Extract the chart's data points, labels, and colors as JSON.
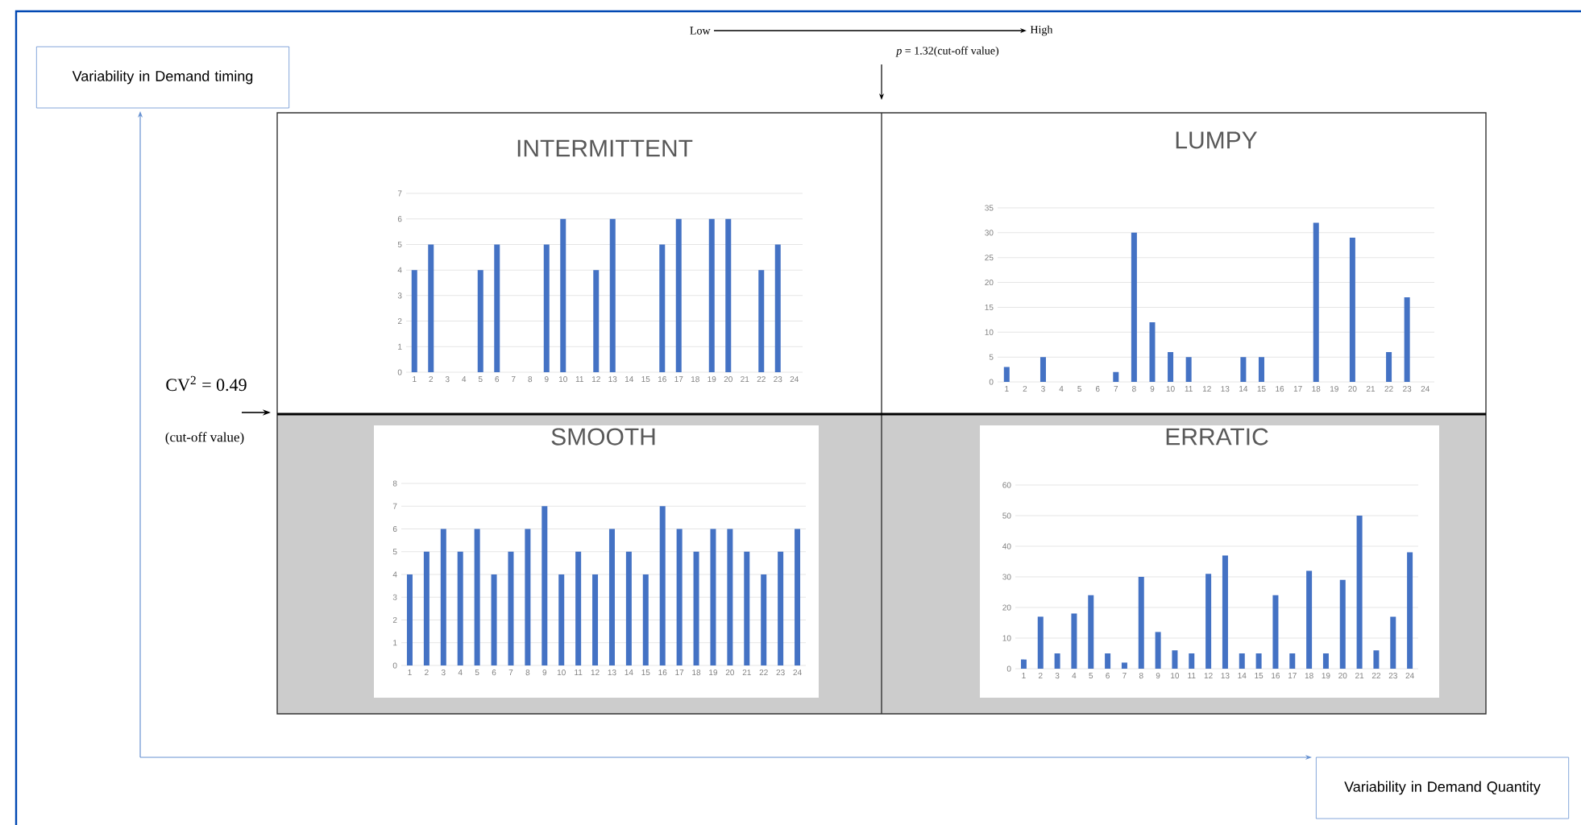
{
  "chart_data": [
    {
      "type": "bar",
      "title": "INTERMITTENT",
      "categories": [
        "1",
        "2",
        "3",
        "4",
        "5",
        "6",
        "7",
        "8",
        "9",
        "10",
        "11",
        "12",
        "13",
        "14",
        "15",
        "16",
        "17",
        "18",
        "19",
        "20",
        "21",
        "22",
        "23",
        "24"
      ],
      "values": [
        4,
        5,
        0,
        0,
        4,
        5,
        0,
        0,
        5,
        6,
        0,
        4,
        6,
        0,
        0,
        5,
        6,
        0,
        6,
        6,
        0,
        4,
        5,
        0
      ],
      "color": "#4472c4",
      "ylim": [
        0,
        7
      ],
      "yticks": [
        0,
        1,
        2,
        3,
        4,
        5,
        6,
        7
      ],
      "grid": "y"
    },
    {
      "type": "bar",
      "title": "LUMPY",
      "categories": [
        "1",
        "2",
        "3",
        "4",
        "5",
        "6",
        "7",
        "8",
        "9",
        "10",
        "11",
        "12",
        "13",
        "14",
        "15",
        "16",
        "17",
        "18",
        "19",
        "20",
        "21",
        "22",
        "23",
        "24"
      ],
      "values": [
        3,
        0,
        5,
        0,
        0,
        0,
        2,
        30,
        12,
        6,
        5,
        0,
        0,
        5,
        5,
        0,
        0,
        32,
        0,
        29,
        0,
        6,
        17,
        0
      ],
      "color": "#4472c4",
      "ylim": [
        0,
        35
      ],
      "yticks": [
        0,
        5,
        10,
        15,
        20,
        25,
        30,
        35
      ],
      "grid": "y"
    },
    {
      "type": "bar",
      "title": "SMOOTH",
      "categories": [
        "1",
        "2",
        "3",
        "4",
        "5",
        "6",
        "7",
        "8",
        "9",
        "10",
        "11",
        "12",
        "13",
        "14",
        "15",
        "16",
        "17",
        "18",
        "19",
        "20",
        "21",
        "22",
        "23",
        "24"
      ],
      "values": [
        4,
        5,
        6,
        5,
        6,
        4,
        5,
        6,
        7,
        4,
        5,
        4,
        6,
        5,
        4,
        7,
        6,
        5,
        6,
        6,
        5,
        4,
        5,
        6
      ],
      "color": "#4472c4",
      "ylim": [
        0,
        8
      ],
      "yticks": [
        0,
        1,
        2,
        3,
        4,
        5,
        6,
        7,
        8
      ],
      "grid": "y"
    },
    {
      "type": "bar",
      "title": "ERRATIC",
      "categories": [
        "1",
        "2",
        "3",
        "4",
        "5",
        "6",
        "7",
        "8",
        "9",
        "10",
        "11",
        "12",
        "13",
        "14",
        "15",
        "16",
        "17",
        "18",
        "19",
        "20",
        "21",
        "22",
        "23",
        "24"
      ],
      "values": [
        3,
        17,
        5,
        18,
        24,
        5,
        2,
        30,
        12,
        6,
        5,
        31,
        37,
        5,
        5,
        24,
        5,
        32,
        5,
        29,
        50,
        6,
        17,
        38
      ],
      "color": "#4472c4",
      "ylim": [
        0,
        60
      ],
      "yticks": [
        0,
        10,
        20,
        30,
        40,
        50,
        60
      ],
      "grid": "y"
    },
    {
      "type": "other",
      "annotations": [
        "Variability in Demand timing",
        "Low",
        "High",
        "*p* = 1.32(cut-off value)",
        "CV$^{2}$ = 0.49",
        "(cut-off value)",
        "Variability in Demand Quantity"
      ]
    }
  ]
}
